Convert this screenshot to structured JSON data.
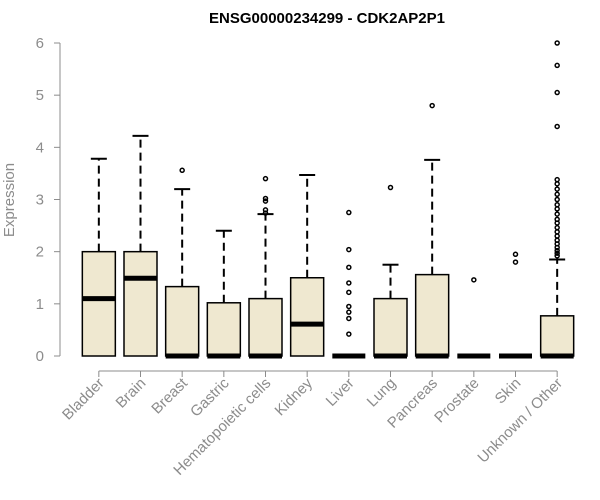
{
  "chart_data": {
    "type": "boxplot",
    "title": "ENSG00000234299 - CDK2AP2P1",
    "ylabel": "Expression",
    "xlabel": "",
    "ylim": [
      0,
      6
    ],
    "yticks": [
      0,
      1,
      2,
      3,
      4,
      5,
      6
    ],
    "grid": false,
    "legend": "none",
    "colors": {
      "box_fill": "#EFE8D0",
      "stroke": "#000000",
      "axis": "#8c8c8c"
    },
    "categories": [
      "Bladder",
      "Brain",
      "Breast",
      "Gastric",
      "Hematopoietic cells",
      "Kidney",
      "Liver",
      "Lung",
      "Pancreas",
      "Prostate",
      "Skin",
      "Unknown / Other"
    ],
    "boxes": [
      {
        "q1": 0,
        "median": 1.1,
        "q3": 2.0,
        "whisker_low": 0,
        "whisker_high": 3.78,
        "outliers": []
      },
      {
        "q1": 0,
        "median": 1.49,
        "q3": 2.0,
        "whisker_low": 0,
        "whisker_high": 4.22,
        "outliers": []
      },
      {
        "q1": 0,
        "median": 0,
        "q3": 1.33,
        "whisker_low": 0,
        "whisker_high": 3.2,
        "outliers": [
          3.56
        ]
      },
      {
        "q1": 0,
        "median": 0,
        "q3": 1.02,
        "whisker_low": 0,
        "whisker_high": 2.4,
        "outliers": []
      },
      {
        "q1": 0,
        "median": 0,
        "q3": 1.1,
        "whisker_low": 0,
        "whisker_high": 2.72,
        "outliers": [
          2.74,
          2.8,
          2.97,
          3.02,
          3.4
        ]
      },
      {
        "q1": 0,
        "median": 0.61,
        "q3": 1.5,
        "whisker_low": 0,
        "whisker_high": 3.47,
        "outliers": []
      },
      {
        "q1": 0,
        "median": 0,
        "q3": 0,
        "whisker_low": 0,
        "whisker_high": 0,
        "outliers": [
          0.42,
          0.72,
          0.84,
          0.95,
          1.22,
          1.4,
          1.7,
          2.04,
          2.75
        ]
      },
      {
        "q1": 0,
        "median": 0,
        "q3": 1.1,
        "whisker_low": 0,
        "whisker_high": 1.75,
        "outliers": [
          3.23
        ]
      },
      {
        "q1": 0,
        "median": 0,
        "q3": 1.56,
        "whisker_low": 0,
        "whisker_high": 3.76,
        "outliers": [
          4.8
        ]
      },
      {
        "q1": 0,
        "median": 0,
        "q3": 0,
        "whisker_low": 0,
        "whisker_high": 0,
        "outliers": [
          1.46
        ]
      },
      {
        "q1": 0,
        "median": 0,
        "q3": 0,
        "whisker_low": 0,
        "whisker_high": 0,
        "outliers": [
          1.8,
          1.95
        ]
      },
      {
        "q1": 0,
        "median": 0,
        "q3": 0.77,
        "whisker_low": 0,
        "whisker_high": 1.85,
        "outliers": [
          1.92,
          1.97,
          2.02,
          2.08,
          2.15,
          2.22,
          2.3,
          2.38,
          2.46,
          2.55,
          2.62,
          2.72,
          2.82,
          2.9,
          3.0,
          3.1,
          3.2,
          3.3,
          3.38,
          4.4,
          5.05,
          5.57,
          6.0
        ]
      }
    ]
  }
}
